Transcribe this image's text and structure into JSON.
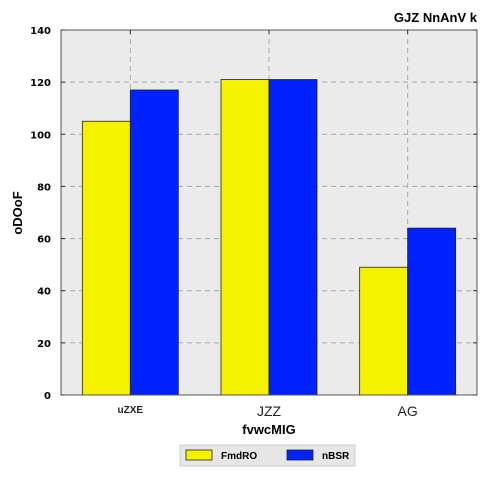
{
  "chart_data": {
    "type": "bar",
    "title": "GJZ NnAnV k",
    "xlabel": "fvwcMIG",
    "ylabel": "oDOoF",
    "categories": [
      "uZXE",
      "JZZ",
      "AG"
    ],
    "series": [
      {
        "name": "FmdRO",
        "color": "#f5f200",
        "values": [
          105,
          121,
          49
        ]
      },
      {
        "name": "nBSR",
        "color": "#0022ff",
        "values": [
          117,
          121,
          64
        ]
      }
    ],
    "ylim": [
      0,
      140
    ],
    "yticks": [
      0,
      20,
      40,
      60,
      80,
      100,
      120,
      140
    ],
    "grid": true,
    "legend_position": "bottom-center",
    "colors": {
      "plot_background": "#ebebeb",
      "grid": "#a8a8a8"
    }
  }
}
